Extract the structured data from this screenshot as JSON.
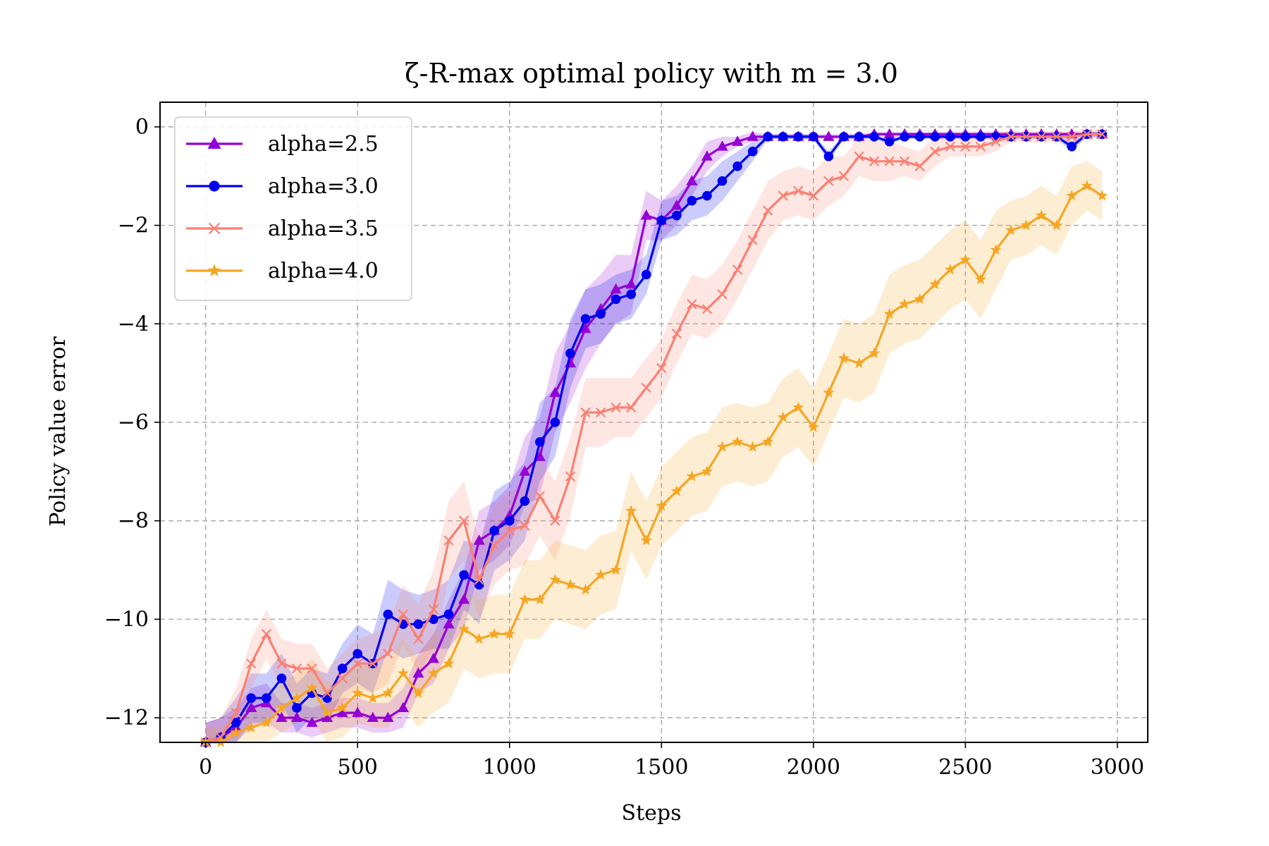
{
  "chart_data": {
    "type": "line",
    "title": "ζ-R-max optimal policy with m = 3.0",
    "xlabel": "Steps",
    "ylabel": "Policy value error",
    "xlim": [
      -150,
      3100
    ],
    "ylim": [
      -12.5,
      0.5
    ],
    "xticks": [
      0,
      500,
      1000,
      1500,
      2000,
      2500,
      3000
    ],
    "xtick_labels": [
      "0",
      "500",
      "1000",
      "1500",
      "2000",
      "2500",
      "3000"
    ],
    "yticks": [
      0,
      -2,
      -4,
      -6,
      -8,
      -10,
      -12
    ],
    "ytick_labels": [
      "0",
      "−2",
      "−4",
      "−6",
      "−8",
      "−10",
      "−12"
    ],
    "grid": true,
    "legend_position": "upper-left",
    "x": [
      0,
      50,
      100,
      150,
      200,
      250,
      300,
      350,
      400,
      450,
      500,
      550,
      600,
      650,
      700,
      750,
      800,
      850,
      900,
      950,
      1000,
      1050,
      1100,
      1150,
      1200,
      1250,
      1300,
      1350,
      1400,
      1450,
      1500,
      1550,
      1600,
      1650,
      1700,
      1750,
      1800,
      1850,
      1900,
      1950,
      2000,
      2050,
      2100,
      2150,
      2200,
      2250,
      2300,
      2350,
      2400,
      2450,
      2500,
      2550,
      2600,
      2650,
      2700,
      2750,
      2800,
      2850,
      2900,
      2950
    ],
    "series": [
      {
        "name": "alpha=2.5",
        "color": "#9400d3",
        "marker": "triangle",
        "values": [
          -12.5,
          -12.4,
          -12.2,
          -11.8,
          -11.7,
          -12.0,
          -12.0,
          -12.1,
          -12.0,
          -11.9,
          -11.9,
          -12.0,
          -12.0,
          -11.8,
          -11.1,
          -10.8,
          -10.1,
          -9.6,
          -8.4,
          -8.2,
          -7.9,
          -7.0,
          -6.7,
          -5.4,
          -4.8,
          -4.1,
          -3.7,
          -3.3,
          -3.2,
          -1.8,
          -1.9,
          -1.6,
          -1.1,
          -0.6,
          -0.4,
          -0.3,
          -0.2,
          -0.2,
          -0.2,
          -0.2,
          -0.2,
          -0.2,
          -0.2,
          -0.2,
          -0.15,
          -0.15,
          -0.15,
          -0.15,
          -0.15,
          -0.15,
          -0.15,
          -0.15,
          -0.15,
          -0.15,
          -0.15,
          -0.15,
          -0.15,
          -0.15,
          -0.15,
          -0.15
        ],
        "band": [
          0.4,
          0.4,
          0.4,
          0.4,
          0.4,
          0.3,
          0.3,
          0.3,
          0.3,
          0.3,
          0.3,
          0.3,
          0.3,
          0.4,
          0.4,
          0.5,
          0.5,
          0.6,
          0.6,
          0.6,
          0.6,
          0.7,
          0.8,
          0.8,
          0.8,
          0.8,
          0.7,
          0.7,
          0.6,
          0.5,
          0.4,
          0.4,
          0.3,
          0.3,
          0.2,
          0.1,
          0.1,
          0.05,
          0.05,
          0.05,
          0.05,
          0.05,
          0.05,
          0.05,
          0.05,
          0.05,
          0.05,
          0.05,
          0.05,
          0.05,
          0.05,
          0.05,
          0.05,
          0.05,
          0.05,
          0.05,
          0.05,
          0.05,
          0.05,
          0.05
        ]
      },
      {
        "name": "alpha=3.0",
        "color": "#0000ee",
        "marker": "circle",
        "values": [
          -12.5,
          -12.4,
          -12.1,
          -11.6,
          -11.6,
          -11.2,
          -11.8,
          -11.5,
          -11.6,
          -11.0,
          -10.7,
          -10.9,
          -9.9,
          -10.1,
          -10.1,
          -10.0,
          -9.9,
          -9.1,
          -9.3,
          -8.2,
          -8.0,
          -7.6,
          -6.4,
          -6.0,
          -4.6,
          -3.9,
          -3.8,
          -3.5,
          -3.4,
          -3.0,
          -1.9,
          -1.8,
          -1.5,
          -1.4,
          -1.1,
          -0.8,
          -0.5,
          -0.2,
          -0.2,
          -0.2,
          -0.2,
          -0.6,
          -0.2,
          -0.2,
          -0.2,
          -0.3,
          -0.2,
          -0.2,
          -0.2,
          -0.2,
          -0.2,
          -0.2,
          -0.2,
          -0.2,
          -0.2,
          -0.2,
          -0.2,
          -0.4,
          -0.15,
          -0.15
        ],
        "band": [
          0.4,
          0.4,
          0.5,
          0.5,
          0.5,
          0.5,
          0.5,
          0.5,
          0.5,
          0.5,
          0.6,
          0.6,
          0.7,
          0.7,
          0.6,
          0.6,
          0.7,
          0.7,
          0.8,
          0.8,
          0.8,
          0.8,
          0.8,
          0.7,
          0.7,
          0.6,
          0.6,
          0.5,
          0.5,
          0.4,
          0.4,
          0.4,
          0.4,
          0.4,
          0.4,
          0.3,
          0.2,
          0.05,
          0.05,
          0.05,
          0.05,
          0.1,
          0.05,
          0.05,
          0.05,
          0.05,
          0.05,
          0.05,
          0.05,
          0.05,
          0.05,
          0.05,
          0.05,
          0.05,
          0.05,
          0.05,
          0.05,
          0.1,
          0.05,
          0.05
        ]
      },
      {
        "name": "alpha=3.5",
        "color": "#fa8072",
        "marker": "x",
        "values": [
          -12.5,
          -12.4,
          -11.9,
          -10.9,
          -10.3,
          -10.9,
          -11.0,
          -11.0,
          -11.5,
          -11.2,
          -10.9,
          -10.9,
          -10.7,
          -9.9,
          -10.4,
          -9.8,
          -8.4,
          -8.0,
          -9.2,
          -8.5,
          -8.2,
          -8.1,
          -7.5,
          -8.0,
          -7.1,
          -5.8,
          -5.8,
          -5.7,
          -5.7,
          -5.3,
          -4.9,
          -4.2,
          -3.6,
          -3.7,
          -3.4,
          -2.9,
          -2.3,
          -1.7,
          -1.4,
          -1.3,
          -1.4,
          -1.1,
          -1.0,
          -0.6,
          -0.7,
          -0.7,
          -0.7,
          -0.8,
          -0.5,
          -0.4,
          -0.4,
          -0.4,
          -0.3,
          -0.2,
          -0.2,
          -0.2,
          -0.2,
          -0.2,
          -0.15,
          -0.15
        ],
        "band": [
          0.4,
          0.4,
          0.5,
          0.5,
          0.5,
          0.5,
          0.5,
          0.5,
          0.5,
          0.5,
          0.5,
          0.6,
          0.6,
          0.6,
          0.7,
          0.8,
          0.8,
          0.8,
          0.8,
          0.8,
          0.8,
          0.8,
          0.8,
          0.8,
          0.8,
          0.7,
          0.7,
          0.6,
          0.6,
          0.6,
          0.6,
          0.6,
          0.6,
          0.6,
          0.6,
          0.6,
          0.6,
          0.6,
          0.5,
          0.5,
          0.5,
          0.5,
          0.4,
          0.4,
          0.4,
          0.4,
          0.3,
          0.3,
          0.3,
          0.2,
          0.2,
          0.2,
          0.2,
          0.1,
          0.1,
          0.1,
          0.1,
          0.1,
          0.1,
          0.1
        ]
      },
      {
        "name": "alpha=4.0",
        "color": "#f5a623",
        "marker": "star",
        "values": [
          -12.5,
          -12.5,
          -12.3,
          -12.2,
          -12.1,
          -11.8,
          -11.6,
          -11.4,
          -11.9,
          -11.8,
          -11.5,
          -11.6,
          -11.5,
          -11.1,
          -11.5,
          -11.1,
          -10.9,
          -10.2,
          -10.4,
          -10.3,
          -10.3,
          -9.6,
          -9.6,
          -9.2,
          -9.3,
          -9.4,
          -9.1,
          -9.0,
          -7.8,
          -8.4,
          -7.7,
          -7.4,
          -7.1,
          -7.0,
          -6.5,
          -6.4,
          -6.5,
          -6.4,
          -5.9,
          -5.7,
          -6.1,
          -5.4,
          -4.7,
          -4.8,
          -4.6,
          -3.8,
          -3.6,
          -3.5,
          -3.2,
          -2.9,
          -2.7,
          -3.1,
          -2.5,
          -2.1,
          -2.0,
          -1.8,
          -2.0,
          -1.4,
          -1.2,
          -1.4
        ],
        "band": [
          0.3,
          0.3,
          0.3,
          0.4,
          0.4,
          0.5,
          0.5,
          0.6,
          0.6,
          0.6,
          0.6,
          0.6,
          0.7,
          0.7,
          0.7,
          0.8,
          0.8,
          0.8,
          0.8,
          0.8,
          0.8,
          0.8,
          0.8,
          0.8,
          0.8,
          0.8,
          0.8,
          0.8,
          0.8,
          0.8,
          0.8,
          0.8,
          0.8,
          0.8,
          0.8,
          0.8,
          0.8,
          0.8,
          0.8,
          0.8,
          0.8,
          0.8,
          0.8,
          0.8,
          0.8,
          0.8,
          0.8,
          0.8,
          0.8,
          0.8,
          0.8,
          0.8,
          0.8,
          0.6,
          0.6,
          0.6,
          0.6,
          0.6,
          0.5,
          0.5
        ]
      }
    ]
  }
}
